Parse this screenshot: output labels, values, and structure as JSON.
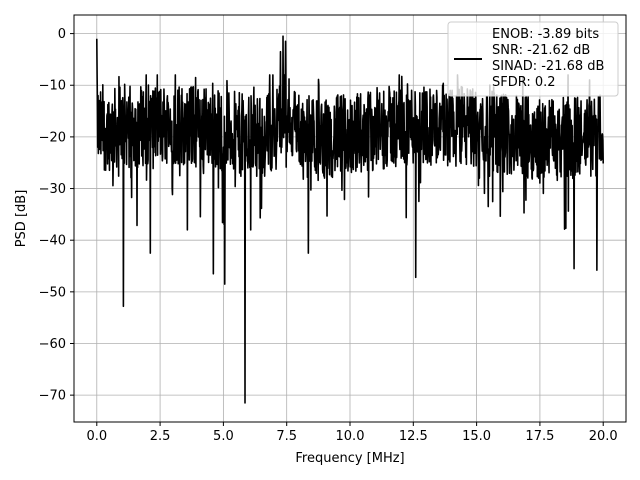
{
  "chart_data": {
    "type": "line",
    "title": "",
    "xlabel": "Frequency [MHz]",
    "ylabel": "PSD [dB]",
    "xlim": [
      -0.9,
      20.9
    ],
    "ylim": [
      -75.2,
      3.6
    ],
    "grid": true,
    "legend_position": "top-right",
    "x_ticks": [
      0.0,
      2.5,
      5.0,
      7.5,
      10.0,
      12.5,
      15.0,
      17.5,
      20.0
    ],
    "x_tick_labels": [
      "0.0",
      "2.5",
      "5.0",
      "7.5",
      "10.0",
      "12.5",
      "15.0",
      "17.5",
      "20.0"
    ],
    "y_ticks": [
      0,
      -10,
      -20,
      -30,
      -40,
      -50,
      -60,
      -70
    ],
    "y_tick_labels": [
      "0",
      "−10",
      "−20",
      "−30",
      "−40",
      "−50",
      "−60",
      "−70"
    ],
    "series": [
      {
        "color": "#000000",
        "x_range": [
          0.0,
          20.0
        ],
        "points": 1600,
        "typical_level_db": -20,
        "fluctuation_db": [
          -30,
          -10
        ],
        "dc_peak": [
          0.0,
          -1.0
        ],
        "notable_peaks": [
          [
            7.35,
            -0.5
          ],
          [
            7.45,
            -1.5
          ],
          [
            7.25,
            -3.5
          ]
        ],
        "notable_dips": [
          [
            1.05,
            -52.8
          ],
          [
            2.12,
            -42.5
          ],
          [
            4.6,
            -46.5
          ],
          [
            5.05,
            -48.5
          ],
          [
            5.85,
            -71.5
          ],
          [
            8.35,
            -42.5
          ],
          [
            12.6,
            -47.2
          ],
          [
            18.85,
            -45.5
          ],
          [
            19.75,
            -45.8
          ]
        ]
      }
    ],
    "legend": {
      "line_color": "#000000",
      "entries": [
        "ENOB: -3.89 bits",
        "SNR: -21.62 dB",
        "SINAD: -21.68 dB",
        "SFDR: 0.2"
      ]
    }
  }
}
